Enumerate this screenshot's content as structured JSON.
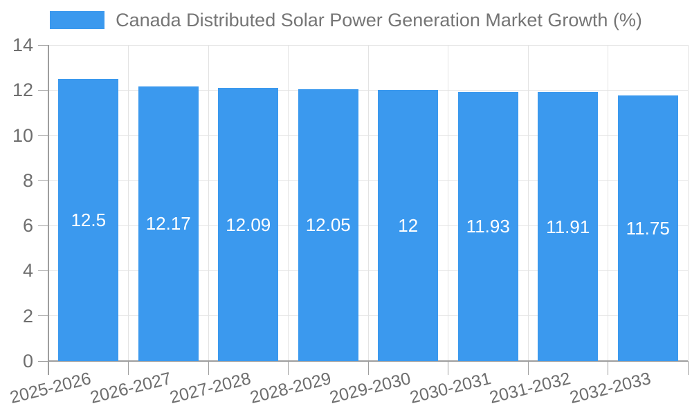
{
  "chart_data": {
    "type": "bar",
    "title": "Canada Distributed Solar Power Generation Market Growth (%)",
    "categories": [
      "2025-2026",
      "2026-2027",
      "2027-2028",
      "2028-2029",
      "2029-2030",
      "2030-2031",
      "2031-2032",
      "2032-2033"
    ],
    "series": [
      {
        "name": "Canada Distributed Solar Power Generation Market Growth (%)",
        "values": [
          12.5,
          12.17,
          12.09,
          12.05,
          12,
          11.93,
          11.91,
          11.75
        ],
        "value_labels": [
          "12.5",
          "12.17",
          "12.09",
          "12.05",
          "12",
          "11.93",
          "11.91",
          "11.75"
        ]
      }
    ],
    "xlabel": "",
    "ylabel": "",
    "ylim": [
      0,
      14
    ],
    "yticks": [
      0,
      2,
      4,
      6,
      8,
      10,
      12,
      14
    ],
    "ytick_labels": [
      "0",
      "2",
      "4",
      "6",
      "8",
      "10",
      "12",
      "14"
    ],
    "grid": true,
    "legend_position": "top",
    "colors": {
      "bar": "#3b99ee",
      "bar_label": "#ffffff",
      "axis_text": "#6e6e6e",
      "title_text": "#757575",
      "grid_line": "#e3e3e3",
      "axis_line": "#9e9e9e",
      "background": "#ffffff"
    }
  }
}
